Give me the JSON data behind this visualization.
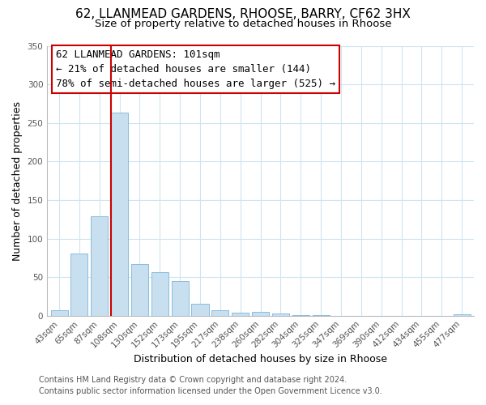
{
  "title": "62, LLANMEAD GARDENS, RHOOSE, BARRY, CF62 3HX",
  "subtitle": "Size of property relative to detached houses in Rhoose",
  "xlabel": "Distribution of detached houses by size in Rhoose",
  "ylabel": "Number of detached properties",
  "footer_line1": "Contains HM Land Registry data © Crown copyright and database right 2024.",
  "footer_line2": "Contains public sector information licensed under the Open Government Licence v3.0.",
  "annotation_title": "62 LLANMEAD GARDENS: 101sqm",
  "annotation_line2": "← 21% of detached houses are smaller (144)",
  "annotation_line3": "78% of semi-detached houses are larger (525) →",
  "bar_labels": [
    "43sqm",
    "65sqm",
    "87sqm",
    "108sqm",
    "130sqm",
    "152sqm",
    "173sqm",
    "195sqm",
    "217sqm",
    "238sqm",
    "260sqm",
    "282sqm",
    "304sqm",
    "325sqm",
    "347sqm",
    "369sqm",
    "390sqm",
    "412sqm",
    "434sqm",
    "455sqm",
    "477sqm"
  ],
  "bar_values": [
    7,
    81,
    129,
    263,
    67,
    56,
    45,
    15,
    7,
    4,
    5,
    3,
    1,
    1,
    0,
    0,
    0,
    0,
    0,
    0,
    2
  ],
  "bar_color": "#c8dff0",
  "bar_edge_color": "#7ab5d8",
  "highlight_line_color": "#cc0000",
  "ylim": [
    0,
    350
  ],
  "yticks": [
    0,
    50,
    100,
    150,
    200,
    250,
    300,
    350
  ],
  "annotation_box_color": "#ffffff",
  "annotation_box_edge": "#cc0000",
  "bg_color": "#ffffff",
  "grid_color": "#d0e4f0",
  "title_fontsize": 11,
  "subtitle_fontsize": 9.5,
  "annotation_fontsize": 9,
  "axis_label_fontsize": 9,
  "tick_fontsize": 7.5,
  "footer_fontsize": 7
}
